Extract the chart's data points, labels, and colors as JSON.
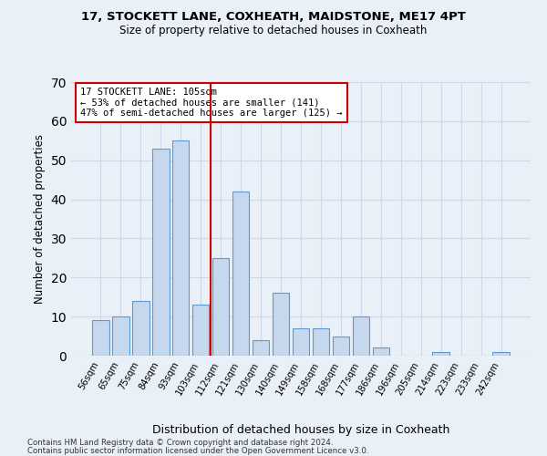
{
  "title1": "17, STOCKETT LANE, COXHEATH, MAIDSTONE, ME17 4PT",
  "title2": "Size of property relative to detached houses in Coxheath",
  "xlabel": "Distribution of detached houses by size in Coxheath",
  "ylabel": "Number of detached properties",
  "categories": [
    "56sqm",
    "65sqm",
    "75sqm",
    "84sqm",
    "93sqm",
    "103sqm",
    "112sqm",
    "121sqm",
    "130sqm",
    "140sqm",
    "149sqm",
    "158sqm",
    "168sqm",
    "177sqm",
    "186sqm",
    "196sqm",
    "205sqm",
    "214sqm",
    "223sqm",
    "233sqm",
    "242sqm"
  ],
  "values": [
    9,
    10,
    14,
    53,
    55,
    13,
    25,
    42,
    4,
    16,
    7,
    7,
    5,
    10,
    2,
    0,
    0,
    1,
    0,
    0,
    1
  ],
  "bar_color": "#c5d8ed",
  "bar_edge_color": "#5b9bd5",
  "property_bin_index": 5,
  "annotation_line1": "17 STOCKETT LANE: 105sqm",
  "annotation_line2": "← 53% of detached houses are smaller (141)",
  "annotation_line3": "47% of semi-detached houses are larger (125) →",
  "vline_color": "#cc0000",
  "annotation_box_color": "#ffffff",
  "annotation_box_edge": "#cc0000",
  "grid_color": "#d0d8e8",
  "bg_color": "#eaf0f8",
  "plot_bg_color": "#eaf0f8",
  "ylim": [
    0,
    70
  ],
  "yticks": [
    0,
    10,
    20,
    30,
    40,
    50,
    60,
    70
  ],
  "footer1": "Contains HM Land Registry data © Crown copyright and database right 2024.",
  "footer2": "Contains public sector information licensed under the Open Government Licence v3.0."
}
